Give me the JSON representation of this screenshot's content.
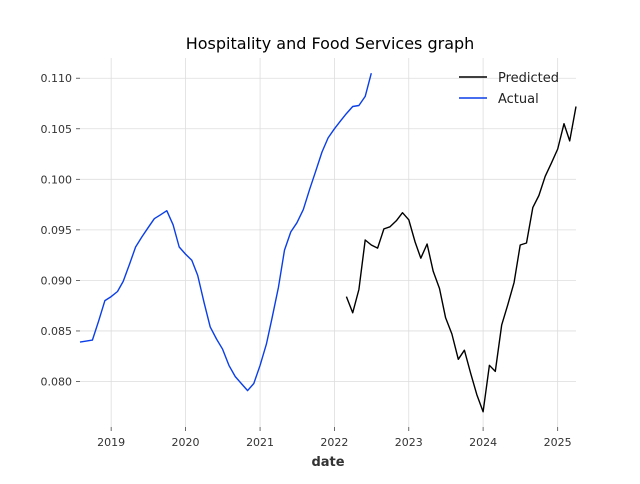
{
  "chart_data": {
    "type": "line",
    "title": "Hospitality and Food Services graph",
    "xlabel": "date",
    "ylabel": "",
    "x_type": "date",
    "xlim": [
      "2018-08-01",
      "2025-04-01"
    ],
    "ylim": [
      0.0755,
      0.112
    ],
    "x_ticks": [
      "2019",
      "2020",
      "2021",
      "2022",
      "2023",
      "2024",
      "2025"
    ],
    "y_ticks": [
      "0.080",
      "0.085",
      "0.090",
      "0.095",
      "0.100",
      "0.105",
      "0.110"
    ],
    "grid": true,
    "legend_position": "top-right",
    "series": [
      {
        "name": "Predicted",
        "color": "#000000",
        "x": [
          "2022-03-01",
          "2022-04-01",
          "2022-05-01",
          "2022-06-01",
          "2022-07-01",
          "2022-08-01",
          "2022-09-01",
          "2022-10-01",
          "2022-11-01",
          "2022-12-01",
          "2023-01-01",
          "2023-02-01",
          "2023-03-01",
          "2023-04-01",
          "2023-05-01",
          "2023-06-01",
          "2023-07-01",
          "2023-08-01",
          "2023-09-01",
          "2023-10-01",
          "2023-11-01",
          "2023-12-01",
          "2024-01-01",
          "2024-02-01",
          "2024-03-01",
          "2024-04-01",
          "2024-05-01",
          "2024-06-01",
          "2024-07-01",
          "2024-08-01",
          "2024-09-01",
          "2024-10-01",
          "2024-11-01",
          "2024-12-01",
          "2025-01-01",
          "2025-02-01",
          "2025-03-01",
          "2025-04-01"
        ],
        "y": [
          0.0884,
          0.0868,
          0.0891,
          0.094,
          0.0935,
          0.0932,
          0.0951,
          0.0953,
          0.0959,
          0.0967,
          0.096,
          0.0938,
          0.0922,
          0.0936,
          0.0909,
          0.0892,
          0.0863,
          0.0847,
          0.0822,
          0.0831,
          0.0808,
          0.0787,
          0.077,
          0.0816,
          0.081,
          0.0856,
          0.0876,
          0.0898,
          0.0935,
          0.0937,
          0.0972,
          0.0984,
          0.1003,
          0.1016,
          0.103,
          0.1055,
          0.1038,
          0.1072
        ]
      },
      {
        "name": "Actual",
        "color": "#0a3ee8",
        "x": [
          "2018-08-01",
          "2018-09-01",
          "2018-10-01",
          "2018-11-01",
          "2018-12-01",
          "2019-01-01",
          "2019-02-01",
          "2019-03-01",
          "2019-04-01",
          "2019-05-01",
          "2019-06-01",
          "2019-07-01",
          "2019-08-01",
          "2019-09-01",
          "2019-10-01",
          "2019-11-01",
          "2019-12-01",
          "2020-01-01",
          "2020-02-01",
          "2020-03-01",
          "2020-04-01",
          "2020-05-01",
          "2020-06-01",
          "2020-07-01",
          "2020-08-01",
          "2020-09-01",
          "2020-10-01",
          "2020-11-01",
          "2020-12-01",
          "2021-01-01",
          "2021-02-01",
          "2021-03-01",
          "2021-04-01",
          "2021-05-01",
          "2021-06-01",
          "2021-07-01",
          "2021-08-01",
          "2021-09-01",
          "2021-10-01",
          "2021-11-01",
          "2021-12-01",
          "2022-01-01",
          "2022-02-01",
          "2022-03-01",
          "2022-04-01",
          "2022-05-01",
          "2022-06-01",
          "2022-07-01"
        ],
        "y": [
          0.0839,
          0.084,
          0.0841,
          0.086,
          0.088,
          0.0884,
          0.0889,
          0.0899,
          0.0916,
          0.0933,
          0.0943,
          0.0952,
          0.0961,
          0.0965,
          0.0969,
          0.0955,
          0.0933,
          0.0926,
          0.092,
          0.0905,
          0.0878,
          0.0854,
          0.0842,
          0.0832,
          0.0816,
          0.0805,
          0.0798,
          0.0791,
          0.0798,
          0.0816,
          0.0837,
          0.0863,
          0.0893,
          0.093,
          0.0948,
          0.0957,
          0.097,
          0.099,
          0.1008,
          0.1027,
          0.1041,
          0.105,
          0.1058,
          0.1065,
          0.1072,
          0.1073,
          0.1082,
          0.1105
        ]
      }
    ]
  }
}
